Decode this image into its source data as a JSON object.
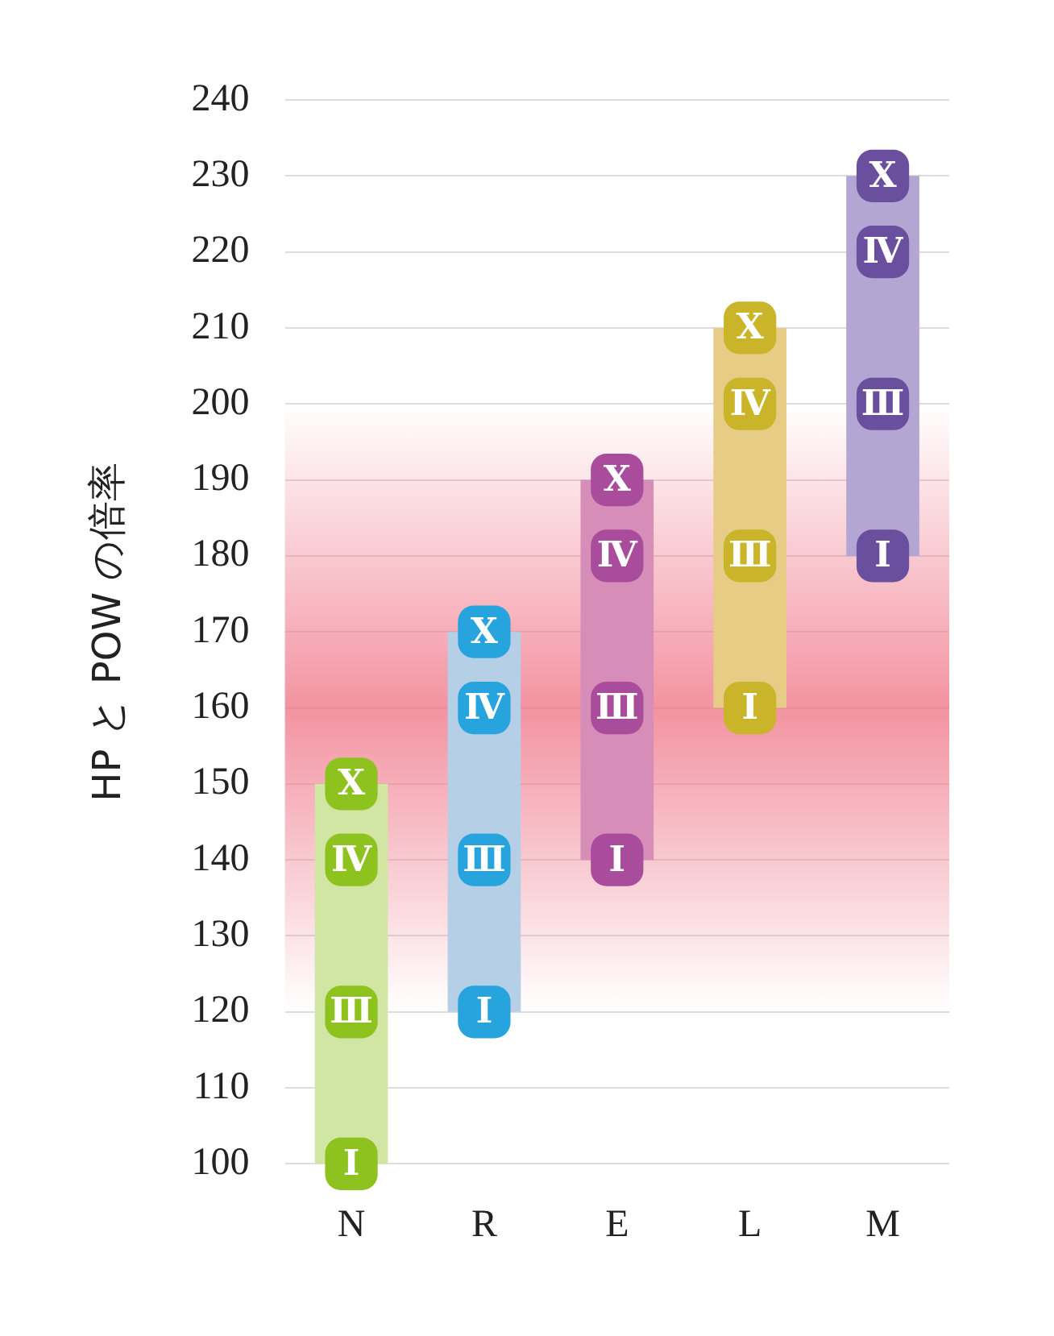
{
  "chart_data": {
    "type": "bar",
    "ylabel": "HP と POW の倍率",
    "categories": [
      "N",
      "R",
      "E",
      "L",
      "M"
    ],
    "ylim": [
      100,
      240
    ],
    "yticks": [
      100,
      110,
      120,
      130,
      140,
      150,
      160,
      170,
      180,
      190,
      200,
      210,
      220,
      230,
      240
    ],
    "grid": "y",
    "legend": false,
    "marker": "square",
    "bands": [
      {
        "axis": "y",
        "from": 120,
        "to": 200,
        "color": "#f0788a"
      }
    ],
    "series": [
      {
        "base": [
          100,
          120,
          140,
          160,
          180
        ],
        "values": [
          50,
          50,
          50,
          50,
          50
        ],
        "colors": [
          "#d2e6a3",
          "#b5cfe6",
          "#d68db8",
          "#e6cc85",
          "#b4a6d3"
        ]
      },
      {
        "type": "scatter",
        "name": "Ⅰ",
        "x": [
          "N",
          "R",
          "E",
          "L",
          "M"
        ],
        "values": [
          100,
          120,
          140,
          160,
          180
        ],
        "colors": [
          "#8dc21f",
          "#27a3dd",
          "#a94c9b",
          "#c9b42a",
          "#6a4f9e"
        ]
      },
      {
        "type": "scatter",
        "name": "Ⅲ",
        "x": [
          "N",
          "R",
          "E",
          "L",
          "M"
        ],
        "values": [
          120,
          140,
          160,
          180,
          200
        ],
        "colors": [
          "#8dc21f",
          "#27a3dd",
          "#a94c9b",
          "#c9b42a",
          "#6a4f9e"
        ]
      },
      {
        "type": "scatter",
        "name": "Ⅳ",
        "x": [
          "N",
          "R",
          "E",
          "L",
          "M"
        ],
        "values": [
          140,
          160,
          180,
          200,
          220
        ],
        "colors": [
          "#8dc21f",
          "#27a3dd",
          "#a94c9b",
          "#c9b42a",
          "#6a4f9e"
        ]
      },
      {
        "type": "scatter",
        "name": "Ⅹ",
        "x": [
          "N",
          "R",
          "E",
          "L",
          "M"
        ],
        "values": [
          150,
          170,
          190,
          210,
          230
        ],
        "colors": [
          "#8dc21f",
          "#27a3dd",
          "#a94c9b",
          "#c9b42a",
          "#6a4f9e"
        ]
      }
    ]
  }
}
